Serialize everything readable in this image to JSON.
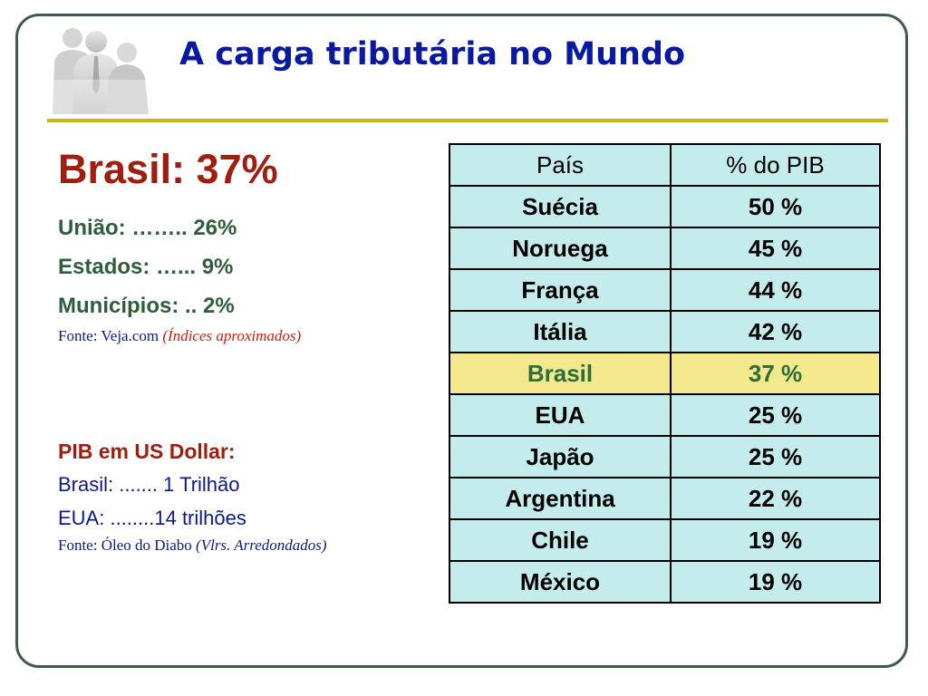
{
  "title": "A carga tributária no Mundo",
  "left": {
    "headline": "Brasil: 37%",
    "breakdown": [
      "União: …….. 26%",
      "Estados: …... 9%",
      "Municípios: .. 2%"
    ],
    "source": {
      "prefix": "Fonte: Veja.com",
      "note": "(Índices aproximados)"
    }
  },
  "pib": {
    "heading": "PIB em US Dollar:",
    "lines": [
      "Brasil: ....... 1 Trilhão",
      "EUA: ........14 trilhões"
    ],
    "source": {
      "prefix": "Fonte: Óleo do Diabo",
      "note": "(Vlrs. Arredondados)"
    }
  },
  "table": {
    "headers": [
      "País",
      "% do PIB"
    ],
    "rows": [
      {
        "country": "Suécia",
        "value": "50 %"
      },
      {
        "country": "Noruega",
        "value": "45 %"
      },
      {
        "country": "França",
        "value": "44 %"
      },
      {
        "country": "Itália",
        "value": "42 %"
      },
      {
        "country": "Brasil",
        "value": "37 %"
      },
      {
        "country": "EUA",
        "value": "25 %"
      },
      {
        "country": "Japão",
        "value": "25 %"
      },
      {
        "country": "Argentina",
        "value": "22 %"
      },
      {
        "country": "Chile",
        "value": "19 %"
      },
      {
        "country": "México",
        "value": "19 %"
      }
    ],
    "highlight_country": "Brasil"
  },
  "colors": {
    "title": "#0a1aa0",
    "headline": "#a01e10",
    "breakdown": "#2e5e3a",
    "table_cell": "#c4ecec",
    "table_highlight": "#f4e88c",
    "rule": "#c8b810",
    "frame": "#3c5c48"
  },
  "icons": {
    "logo": "businessmen-silhouette-logo"
  }
}
